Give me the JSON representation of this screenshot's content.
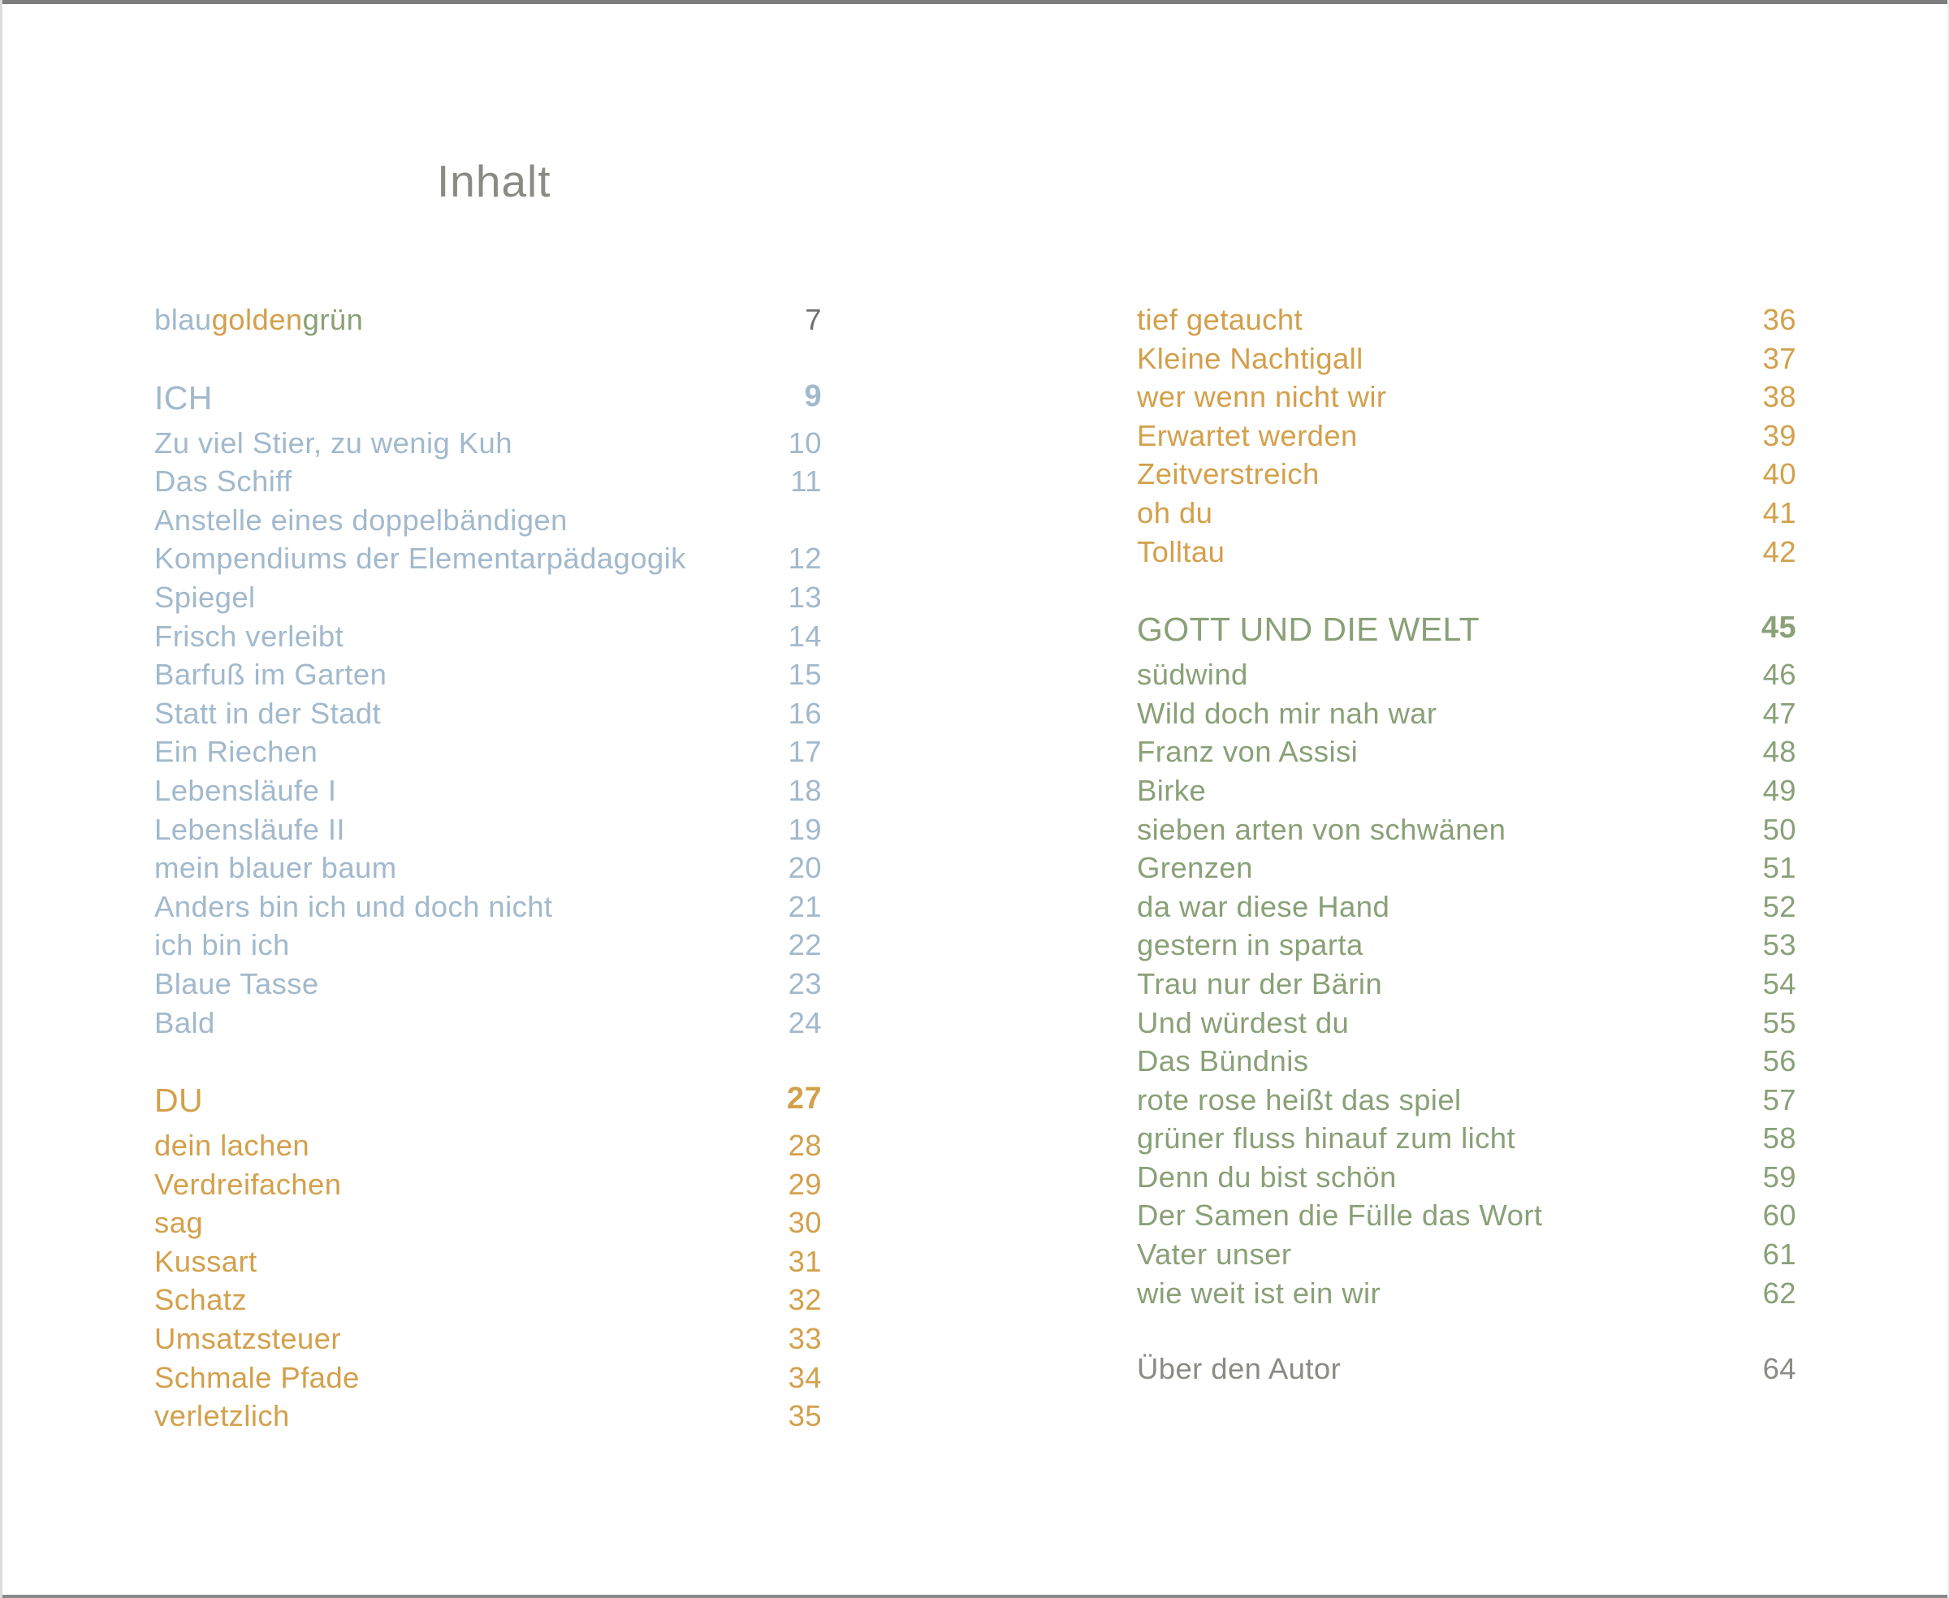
{
  "title": "Inhalt",
  "colors": {
    "blue": "#a2b9cc",
    "gold": "#d3a04c",
    "green": "#8aa077",
    "gray": "#8b8b86",
    "graydark": "#6f6f6f"
  },
  "columns": [
    {
      "side": "left",
      "entries": [
        {
          "type": "multi",
          "segments": [
            {
              "text": "blau",
              "color": "blue"
            },
            {
              "text": "golden",
              "color": "gold"
            },
            {
              "text": "grün",
              "color": "green"
            }
          ],
          "page": "7",
          "page_color": "graydark"
        },
        {
          "type": "gap"
        },
        {
          "type": "header",
          "label": "ICH",
          "page": "9",
          "color": "blue"
        },
        {
          "type": "item",
          "label": "Zu viel Stier, zu wenig Kuh",
          "page": "10",
          "color": "blue"
        },
        {
          "type": "item",
          "label": "Das Schiff",
          "page": "11",
          "color": "blue"
        },
        {
          "type": "item",
          "label": "Anstelle eines doppelbändigen",
          "color": "blue"
        },
        {
          "type": "item",
          "label": "Kompendiums der Elementarpädagogik",
          "page": "12",
          "color": "blue"
        },
        {
          "type": "item",
          "label": "Spiegel",
          "page": "13",
          "color": "blue"
        },
        {
          "type": "item",
          "label": "Frisch verleibt",
          "page": "14",
          "color": "blue"
        },
        {
          "type": "item",
          "label": "Barfuß im Garten",
          "page": "15",
          "color": "blue"
        },
        {
          "type": "item",
          "label": "Statt in der Stadt",
          "page": "16",
          "color": "blue"
        },
        {
          "type": "item",
          "label": "Ein Riechen",
          "page": "17",
          "color": "blue"
        },
        {
          "type": "item",
          "label": "Lebensläufe I",
          "page": "18",
          "color": "blue"
        },
        {
          "type": "item",
          "label": "Lebensläufe II",
          "page": "19",
          "color": "blue"
        },
        {
          "type": "item",
          "label": "mein blauer baum",
          "page": "20",
          "color": "blue"
        },
        {
          "type": "item",
          "label": "Anders bin ich und doch nicht",
          "page": "21",
          "color": "blue"
        },
        {
          "type": "item",
          "label": "ich bin ich",
          "page": "22",
          "color": "blue"
        },
        {
          "type": "item",
          "label": "Blaue Tasse",
          "page": "23",
          "color": "blue"
        },
        {
          "type": "item",
          "label": "Bald",
          "page": "24",
          "color": "blue"
        },
        {
          "type": "gap"
        },
        {
          "type": "header",
          "label": "DU",
          "page": "27",
          "color": "gold"
        },
        {
          "type": "item",
          "label": "dein lachen",
          "page": "28",
          "color": "gold"
        },
        {
          "type": "item",
          "label": "Verdreifachen",
          "page": "29",
          "color": "gold"
        },
        {
          "type": "item",
          "label": "sag",
          "page": "30",
          "color": "gold"
        },
        {
          "type": "item",
          "label": "Kussart",
          "page": "31",
          "color": "gold"
        },
        {
          "type": "item",
          "label": "Schatz",
          "page": "32",
          "color": "gold"
        },
        {
          "type": "item",
          "label": "Umsatzsteuer",
          "page": "33",
          "color": "gold"
        },
        {
          "type": "item",
          "label": "Schmale Pfade",
          "page": "34",
          "color": "gold"
        },
        {
          "type": "item",
          "label": "verletzlich",
          "page": "35",
          "color": "gold"
        }
      ]
    },
    {
      "side": "right",
      "entries": [
        {
          "type": "item",
          "label": "tief getaucht",
          "page": "36",
          "color": "gold"
        },
        {
          "type": "item",
          "label": "Kleine Nachtigall",
          "page": "37",
          "color": "gold"
        },
        {
          "type": "item",
          "label": "wer wenn nicht wir",
          "page": "38",
          "color": "gold"
        },
        {
          "type": "item",
          "label": "Erwartet werden",
          "page": "39",
          "color": "gold"
        },
        {
          "type": "item",
          "label": "Zeitverstreich",
          "page": "40",
          "color": "gold"
        },
        {
          "type": "item",
          "label": "oh du",
          "page": "41",
          "color": "gold"
        },
        {
          "type": "item",
          "label": "Tolltau",
          "page": "42",
          "color": "gold"
        },
        {
          "type": "gap"
        },
        {
          "type": "header",
          "label": "GOTT UND DIE WELT",
          "page": "45",
          "color": "green"
        },
        {
          "type": "item",
          "label": "südwind",
          "page": "46",
          "color": "green"
        },
        {
          "type": "item",
          "label": "Wild doch mir nah war",
          "page": "47",
          "color": "green"
        },
        {
          "type": "item",
          "label": "Franz von Assisi",
          "page": "48",
          "color": "green"
        },
        {
          "type": "item",
          "label": "Birke",
          "page": "49",
          "color": "green"
        },
        {
          "type": "item",
          "label": "sieben arten von schwänen",
          "page": "50",
          "color": "green"
        },
        {
          "type": "item",
          "label": "Grenzen",
          "page": "51",
          "color": "green"
        },
        {
          "type": "item",
          "label": "da war diese Hand",
          "page": "52",
          "color": "green"
        },
        {
          "type": "item",
          "label": "gestern in sparta",
          "page": "53",
          "color": "green"
        },
        {
          "type": "item",
          "label": "Trau nur der Bärin",
          "page": "54",
          "color": "green"
        },
        {
          "type": "item",
          "label": "Und würdest du",
          "page": "55",
          "color": "green"
        },
        {
          "type": "item",
          "label": "Das Bündnis",
          "page": "56",
          "color": "green"
        },
        {
          "type": "item",
          "label": "rote rose heißt das spiel",
          "page": "57",
          "color": "green"
        },
        {
          "type": "item",
          "label": "grüner fluss hinauf zum licht",
          "page": "58",
          "color": "green"
        },
        {
          "type": "item",
          "label": "Denn du bist schön",
          "page": "59",
          "color": "green"
        },
        {
          "type": "item",
          "label": "Der Samen die Fülle das Wort",
          "page": "60",
          "color": "green"
        },
        {
          "type": "item",
          "label": "Vater unser",
          "page": "61",
          "color": "green"
        },
        {
          "type": "item",
          "label": "wie weit ist ein wir",
          "page": "62",
          "color": "green"
        },
        {
          "type": "gap"
        },
        {
          "type": "item",
          "label": "Über den Autor",
          "page": "64",
          "color": "gray"
        }
      ]
    }
  ]
}
